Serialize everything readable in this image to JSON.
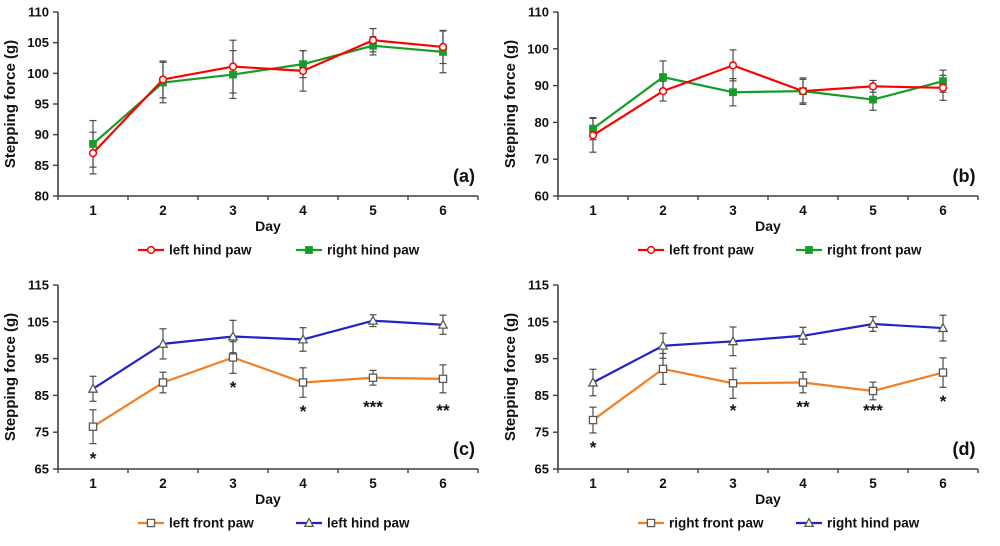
{
  "figure_title": "",
  "style": {
    "background": "#ffffff",
    "axis_color": "#3f3f3f",
    "text_color": "#111111",
    "error_bar_color": "#4c4c4c",
    "open_marker_stroke": "#595959",
    "red": "#ff0000",
    "green": "#169c28",
    "orange": "#f57e20",
    "blue": "#2222cc"
  },
  "chart_data": [
    {
      "id": "a",
      "type": "line",
      "panel_label": "(a)",
      "xlabel": "Day",
      "ylabel": "Stepping force (g)",
      "x": [
        "1",
        "2",
        "3",
        "4",
        "5",
        "6"
      ],
      "ylim": [
        80,
        110
      ],
      "ytick_step": 5,
      "grid": false,
      "legend_position": "bottom",
      "series": [
        {
          "name": "left hind paw",
          "color": "#ff0000",
          "marker": "circle-open",
          "values": [
            87.0,
            99.0,
            101.1,
            100.4,
            105.4,
            104.3
          ],
          "errors": [
            3.4,
            3.0,
            4.3,
            3.3,
            1.9,
            2.7
          ]
        },
        {
          "name": "right hind paw",
          "color": "#169c28",
          "marker": "square-filled",
          "values": [
            88.5,
            98.5,
            99.8,
            101.5,
            104.5,
            103.5
          ],
          "errors": [
            3.8,
            3.3,
            3.9,
            2.2,
            1.5,
            3.4
          ]
        }
      ],
      "annotations": []
    },
    {
      "id": "b",
      "type": "line",
      "panel_label": "(b)",
      "xlabel": "Day",
      "ylabel": "Stepping force (g)",
      "x": [
        "1",
        "2",
        "3",
        "4",
        "5",
        "6"
      ],
      "ylim": [
        60,
        110
      ],
      "ytick_step": 10,
      "grid": false,
      "legend_position": "bottom",
      "series": [
        {
          "name": "left front paw",
          "color": "#ff0000",
          "marker": "circle-open",
          "values": [
            76.5,
            88.5,
            95.5,
            88.5,
            89.8,
            89.4
          ],
          "errors": [
            4.6,
            2.7,
            4.2,
            3.6,
            1.6,
            3.4
          ]
        },
        {
          "name": "right front paw",
          "color": "#169c28",
          "marker": "square-filled",
          "values": [
            78.3,
            92.3,
            88.2,
            88.5,
            86.2,
            91.2
          ],
          "errors": [
            3.0,
            4.4,
            3.7,
            3.2,
            2.9,
            3.0
          ]
        }
      ],
      "annotations": []
    },
    {
      "id": "c",
      "type": "line",
      "panel_label": "(c)",
      "xlabel": "Day",
      "ylabel": "Stepping force (g)",
      "x": [
        "1",
        "2",
        "3",
        "4",
        "5",
        "6"
      ],
      "ylim": [
        65,
        115
      ],
      "ytick_step": 10,
      "grid": false,
      "legend_position": "bottom",
      "series": [
        {
          "name": "left front paw",
          "color": "#f57e20",
          "marker": "square-open",
          "values": [
            76.5,
            88.5,
            95.3,
            88.5,
            89.8,
            89.5
          ],
          "errors": [
            4.6,
            2.8,
            4.3,
            4.0,
            2.0,
            3.8
          ]
        },
        {
          "name": "left hind paw",
          "color": "#2222cc",
          "marker": "triangle-open",
          "values": [
            86.8,
            99.0,
            101.0,
            100.2,
            105.3,
            104.2
          ],
          "errors": [
            3.4,
            4.1,
            4.4,
            3.2,
            1.6,
            2.6
          ]
        }
      ],
      "annotations": [
        {
          "day": 1,
          "y": 68.0,
          "text": "*"
        },
        {
          "day": 3,
          "y": 87.3,
          "text": "*"
        },
        {
          "day": 4,
          "y": 80.7,
          "text": "*"
        },
        {
          "day": 5,
          "y": 82.0,
          "text": "***"
        },
        {
          "day": 6,
          "y": 81.0,
          "text": "**"
        }
      ]
    },
    {
      "id": "d",
      "type": "line",
      "panel_label": "(d)",
      "xlabel": "Day",
      "ylabel": "Stepping force (g)",
      "x": [
        "1",
        "2",
        "3",
        "4",
        "5",
        "6"
      ],
      "ylim": [
        65,
        115
      ],
      "ytick_step": 10,
      "grid": false,
      "legend_position": "bottom",
      "series": [
        {
          "name": "right front paw",
          "color": "#f57e20",
          "marker": "square-open",
          "values": [
            78.3,
            92.2,
            88.3,
            88.5,
            86.2,
            91.2
          ],
          "errors": [
            3.5,
            4.2,
            4.1,
            2.8,
            2.4,
            4.0
          ]
        },
        {
          "name": "right hind paw",
          "color": "#2222cc",
          "marker": "triangle-open",
          "values": [
            88.5,
            98.5,
            99.7,
            101.2,
            104.4,
            103.3
          ],
          "errors": [
            3.6,
            3.4,
            3.9,
            2.3,
            2.0,
            3.5
          ]
        }
      ],
      "annotations": [
        {
          "day": 1,
          "y": 71.0,
          "text": "*"
        },
        {
          "day": 3,
          "y": 81.0,
          "text": "*"
        },
        {
          "day": 4,
          "y": 82.0,
          "text": "**"
        },
        {
          "day": 5,
          "y": 81.0,
          "text": "***"
        },
        {
          "day": 6,
          "y": 83.5,
          "text": "*"
        }
      ]
    }
  ]
}
